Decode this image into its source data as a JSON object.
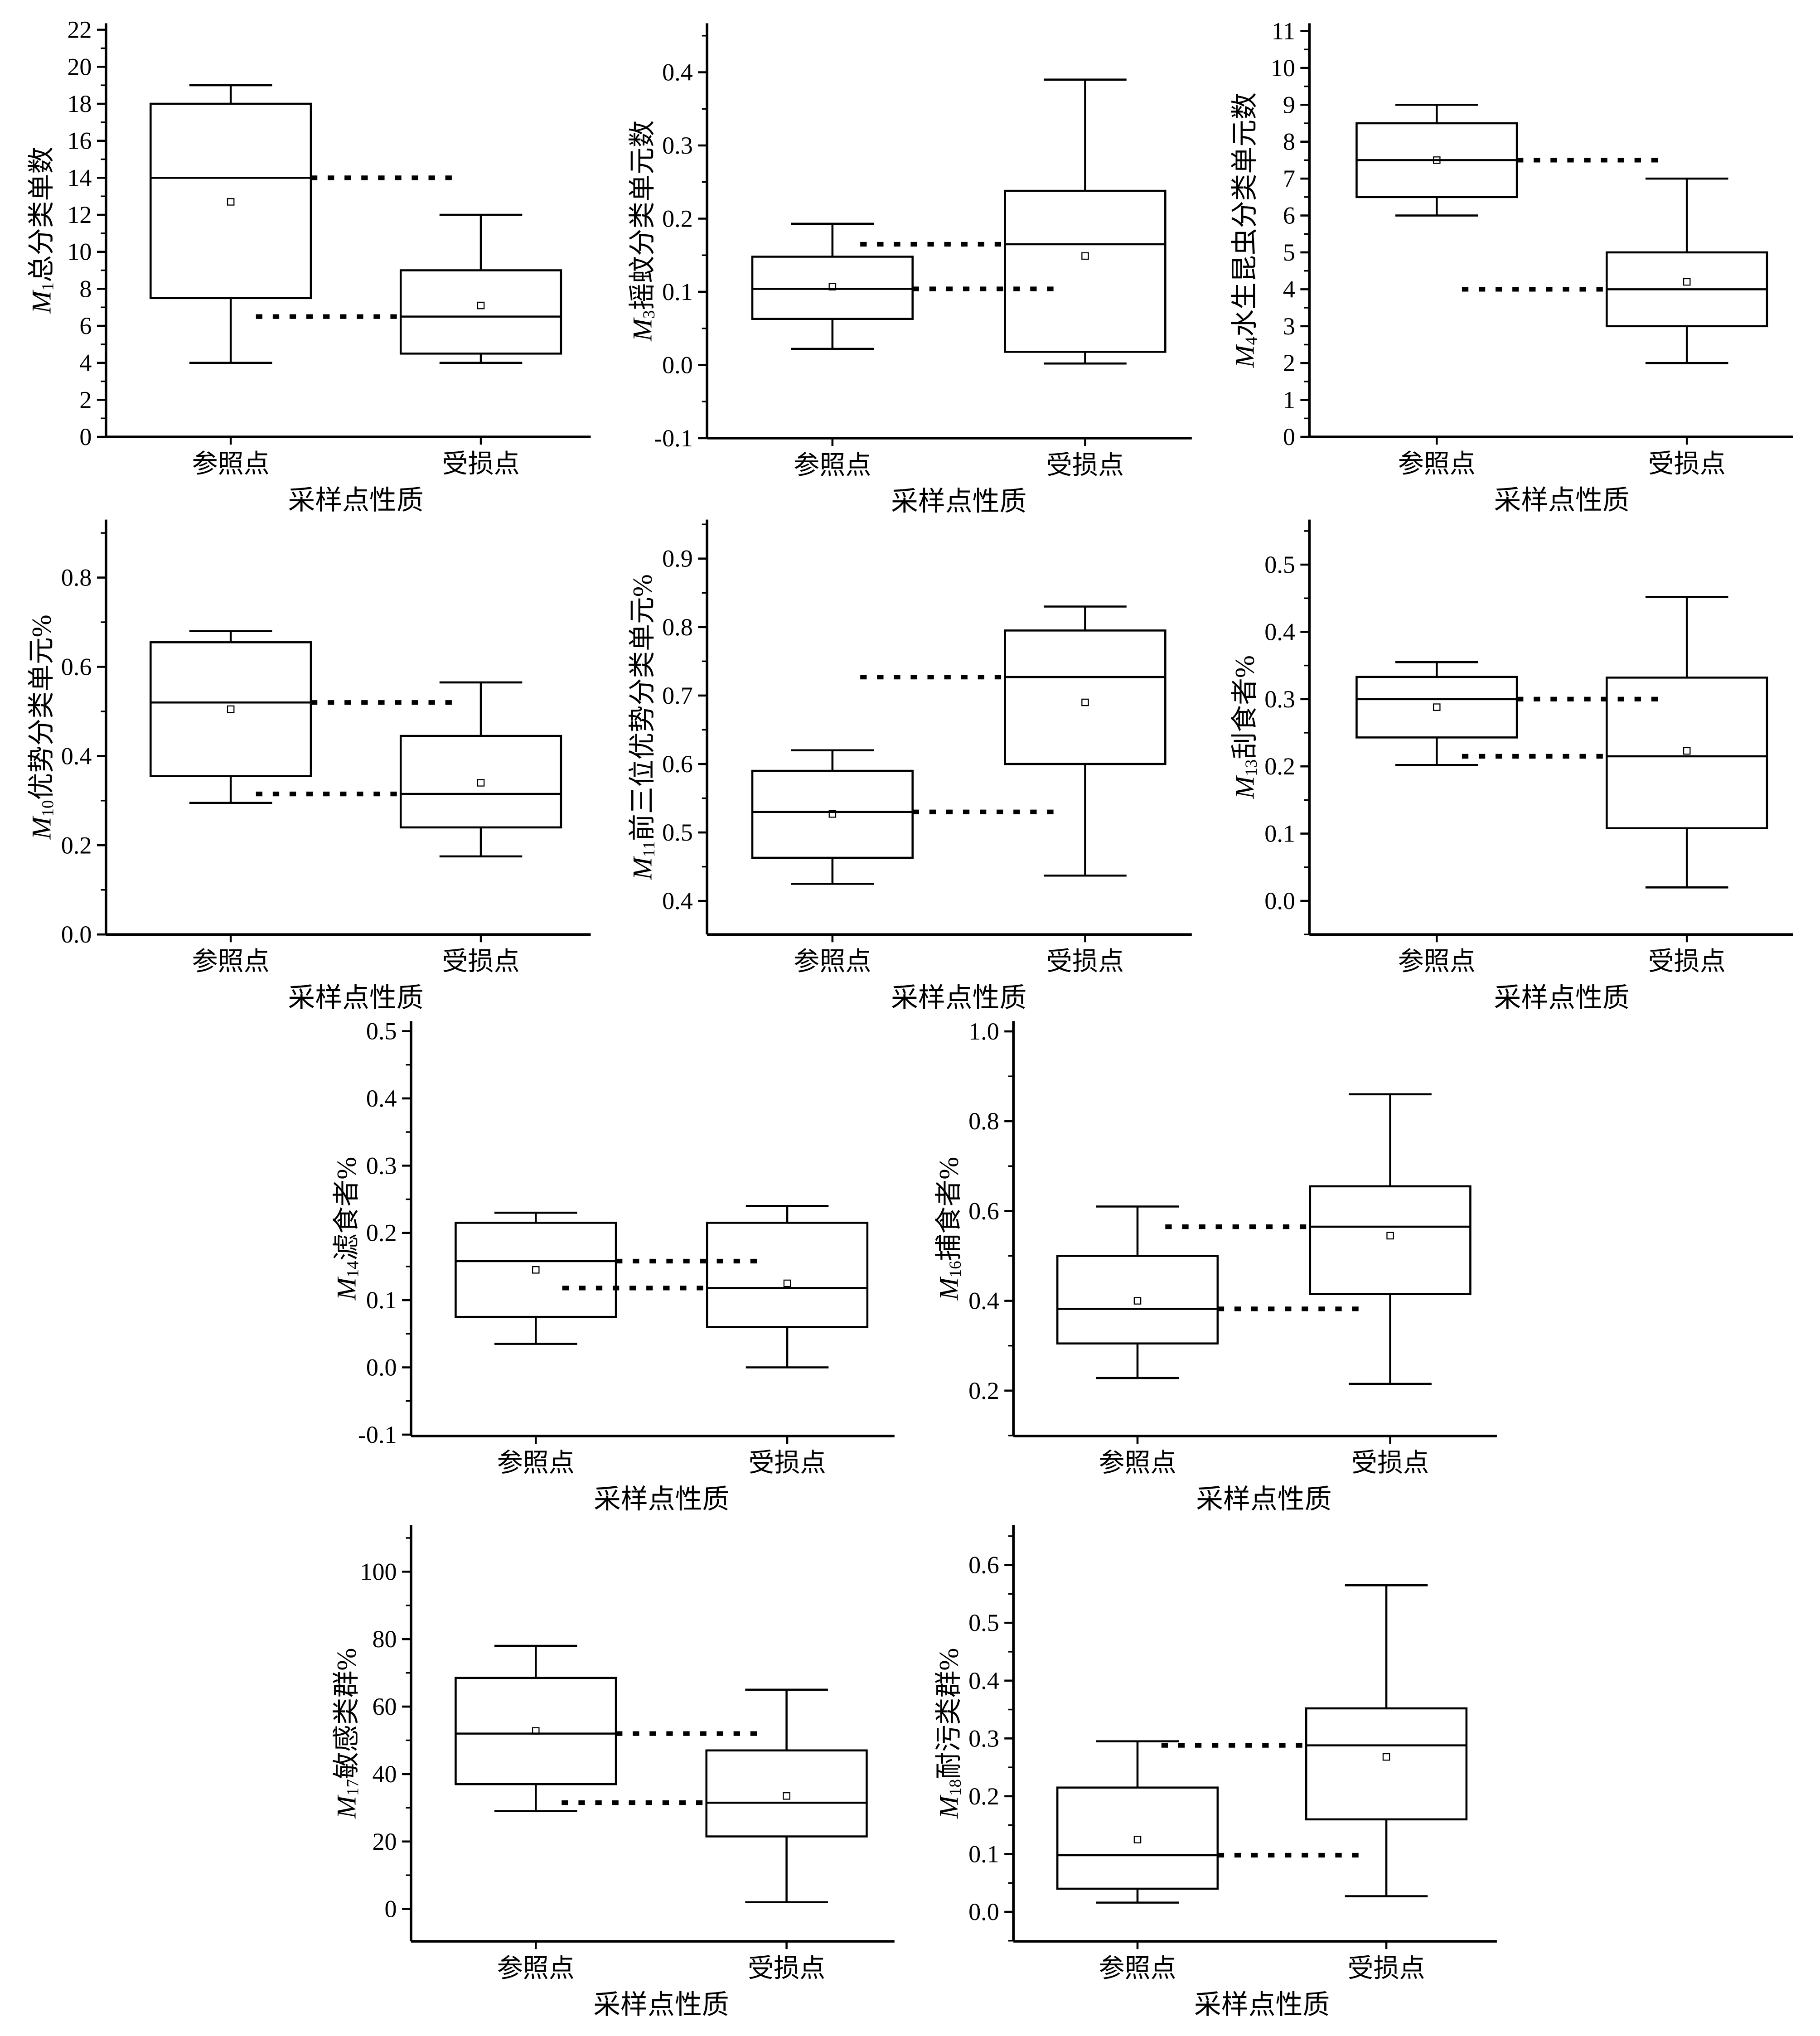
{
  "chart_data": [
    {
      "type": "box",
      "ylabel": {
        "symbol": "M",
        "subscript": "1",
        "name": "总分类单数"
      },
      "xlabel": "采样点性质",
      "categories": [
        "参照点",
        "受损点"
      ],
      "ylim": [
        0,
        22.35
      ],
      "ytick_labels": [
        "0",
        "2",
        "4",
        "6",
        "8",
        "10",
        "12",
        "14",
        "16",
        "18",
        "20",
        "22"
      ],
      "yminor_step": 1,
      "median_guides": true,
      "boxes": [
        {
          "min": 4,
          "q1": 7.5,
          "median": 14,
          "q3": 18,
          "max": 19,
          "mean": 12.7
        },
        {
          "min": 4,
          "q1": 4.5,
          "median": 6.5,
          "q3": 9,
          "max": 12,
          "mean": 7.1
        }
      ]
    },
    {
      "type": "box",
      "ylabel": {
        "symbol": "M",
        "subscript": "3",
        "name": "摇蚊分类单元数"
      },
      "xlabel": "采样点性质",
      "categories": [
        "参照点",
        "受损点"
      ],
      "ylim": [
        -0.1,
        0.467
      ],
      "ytick_labels": [
        "-0.1",
        "0.0",
        "0.1",
        "0.2",
        "0.3",
        "0.4"
      ],
      "yminor_step": 0.05,
      "median_guides": true,
      "boxes": [
        {
          "min": 0.022,
          "q1": 0.063,
          "median": 0.104,
          "q3": 0.148,
          "max": 0.193,
          "mean": 0.107
        },
        {
          "min": 0.002,
          "q1": 0.018,
          "median": 0.165,
          "q3": 0.238,
          "max": 0.39,
          "mean": 0.149
        }
      ]
    },
    {
      "type": "box",
      "ylabel": {
        "symbol": "M",
        "subscript": "4",
        "name": "水生昆虫分类单元数"
      },
      "xlabel": "采样点性质",
      "categories": [
        "参照点",
        "受损点"
      ],
      "ylim": [
        0,
        11.21
      ],
      "ytick_labels": [
        "0",
        "1",
        "2",
        "3",
        "4",
        "5",
        "6",
        "7",
        "8",
        "9",
        "10",
        "11"
      ],
      "yminor_step": 0.5,
      "median_guides": true,
      "boxes": [
        {
          "min": 6,
          "q1": 6.5,
          "median": 7.5,
          "q3": 8.5,
          "max": 9,
          "mean": 7.5
        },
        {
          "min": 2,
          "q1": 3,
          "median": 4,
          "q3": 5,
          "max": 7,
          "mean": 4.2
        }
      ]
    },
    {
      "type": "box",
      "ylabel": {
        "symbol": "M",
        "subscript": "10",
        "name": "优势分类单元%"
      },
      "xlabel": "采样点性质",
      "categories": [
        "参照点",
        "受损点"
      ],
      "ylim": [
        0,
        0.93
      ],
      "ytick_labels": [
        "0.0",
        "0.2",
        "0.4",
        "0.6",
        "0.8"
      ],
      "yminor_step": 0.1,
      "median_guides": true,
      "boxes": [
        {
          "min": 0.295,
          "q1": 0.355,
          "median": 0.52,
          "q3": 0.655,
          "max": 0.68,
          "mean": 0.505
        },
        {
          "min": 0.175,
          "q1": 0.24,
          "median": 0.315,
          "q3": 0.445,
          "max": 0.565,
          "mean": 0.34
        }
      ]
    },
    {
      "type": "box",
      "ylabel": {
        "symbol": "M",
        "subscript": "11",
        "name": "前三位优势分类单元%"
      },
      "xlabel": "采样点性质",
      "categories": [
        "参照点",
        "受损点"
      ],
      "ylim": [
        0.351,
        0.957
      ],
      "ytick_labels": [
        "0.4",
        "0.5",
        "0.6",
        "0.7",
        "0.8",
        "0.9"
      ],
      "yminor_step": 0.05,
      "median_guides": true,
      "boxes": [
        {
          "min": 0.425,
          "q1": 0.463,
          "median": 0.53,
          "q3": 0.59,
          "max": 0.62,
          "mean": 0.527
        },
        {
          "min": 0.437,
          "q1": 0.6,
          "median": 0.727,
          "q3": 0.795,
          "max": 0.83,
          "mean": 0.69
        }
      ]
    },
    {
      "type": "box",
      "ylabel": {
        "symbol": "M",
        "subscript": "13",
        "name": "刮食者%"
      },
      "xlabel": "采样点性质",
      "categories": [
        "参照点",
        "受损点"
      ],
      "ylim": [
        -0.05,
        0.567
      ],
      "ytick_labels": [
        "0.0",
        "0.1",
        "0.2",
        "0.3",
        "0.4",
        "0.5"
      ],
      "yminor_step": 0.05,
      "median_guides": true,
      "boxes": [
        {
          "min": 0.202,
          "q1": 0.243,
          "median": 0.3,
          "q3": 0.333,
          "max": 0.355,
          "mean": 0.288
        },
        {
          "min": 0.02,
          "q1": 0.108,
          "median": 0.215,
          "q3": 0.332,
          "max": 0.452,
          "mean": 0.223
        }
      ]
    },
    {
      "type": "box",
      "ylabel": {
        "symbol": "M",
        "subscript": "14",
        "name": "滤食者%"
      },
      "xlabel": "采样点性质",
      "categories": [
        "参照点",
        "受损点"
      ],
      "ylim": [
        -0.102,
        0.515
      ],
      "ytick_labels": [
        "-0.1",
        "0.0",
        "0.1",
        "0.2",
        "0.3",
        "0.4",
        "0.5"
      ],
      "yminor_step": 0.05,
      "median_guides": true,
      "boxes": [
        {
          "min": 0.035,
          "q1": 0.075,
          "median": 0.158,
          "q3": 0.215,
          "max": 0.23,
          "mean": 0.145
        },
        {
          "min": 0.0,
          "q1": 0.06,
          "median": 0.118,
          "q3": 0.215,
          "max": 0.24,
          "mean": 0.125
        }
      ]
    },
    {
      "type": "box",
      "ylabel": {
        "symbol": "M",
        "subscript": "16",
        "name": "捕食者%"
      },
      "xlabel": "采样点性质",
      "categories": [
        "参照点",
        "受损点"
      ],
      "ylim": [
        0.099,
        1.023
      ],
      "ytick_labels": [
        "0.2",
        "0.4",
        "0.6",
        "0.8",
        "1.0"
      ],
      "yminor_step": 0.1,
      "median_guides": true,
      "boxes": [
        {
          "min": 0.228,
          "q1": 0.305,
          "median": 0.382,
          "q3": 0.5,
          "max": 0.61,
          "mean": 0.4
        },
        {
          "min": 0.215,
          "q1": 0.415,
          "median": 0.565,
          "q3": 0.655,
          "max": 0.86,
          "mean": 0.545
        }
      ]
    },
    {
      "type": "box",
      "ylabel": {
        "symbol": "M",
        "subscript": "17",
        "name": "敏感类群%"
      },
      "xlabel": "采样点性质",
      "categories": [
        "参照点",
        "受损点"
      ],
      "ylim": [
        -9.6,
        113.8
      ],
      "ytick_labels": [
        "0",
        "20",
        "40",
        "60",
        "80",
        "100"
      ],
      "yminor_step": 10,
      "median_guides": true,
      "boxes": [
        {
          "min": 29,
          "q1": 37,
          "median": 52,
          "q3": 68.5,
          "max": 78,
          "mean": 52.8
        },
        {
          "min": 2,
          "q1": 21.5,
          "median": 31.5,
          "q3": 47,
          "max": 65,
          "mean": 33.5
        }
      ]
    },
    {
      "type": "box",
      "ylabel": {
        "symbol": "M",
        "subscript": "18",
        "name": "耐污类群%"
      },
      "xlabel": "采样点性质",
      "categories": [
        "参照点",
        "受损点"
      ],
      "ylim": [
        -0.051,
        0.669
      ],
      "ytick_labels": [
        "0.0",
        "0.1",
        "0.2",
        "0.3",
        "0.4",
        "0.5",
        "0.6"
      ],
      "yminor_step": 0.05,
      "median_guides": true,
      "boxes": [
        {
          "min": 0.016,
          "q1": 0.04,
          "median": 0.098,
          "q3": 0.215,
          "max": 0.295,
          "mean": 0.125
        },
        {
          "min": 0.027,
          "q1": 0.16,
          "median": 0.288,
          "q3": 0.352,
          "max": 0.565,
          "mean": 0.268
        }
      ]
    }
  ]
}
